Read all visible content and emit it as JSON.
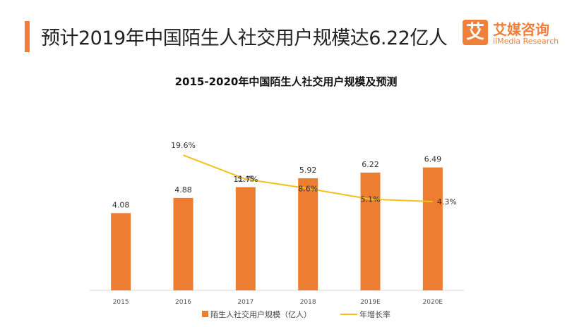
{
  "header": {
    "headline": "预计2019年中国陌生人社交用户规模达6.22亿人",
    "accent_color": "#ef7f3a"
  },
  "logo": {
    "mark": "艾",
    "cn": "艾媒咨询",
    "en": "iiMedia Research",
    "color": "#ef7f3a"
  },
  "chart_data": {
    "type": "bar",
    "title": "2015-2020年中国陌生人社交用户规模及预测",
    "categories": [
      "2015",
      "2016",
      "2017",
      "2018",
      "2019E",
      "2020E"
    ],
    "series": [
      {
        "name": "陌生人社交用户规模（亿人）",
        "type": "bar",
        "color": "#ed7d31",
        "values": [
          4.08,
          4.88,
          5.45,
          5.92,
          6.22,
          6.49
        ],
        "labels": [
          "4.08",
          "4.88",
          "5.45",
          "5.92",
          "6.22",
          "6.49"
        ]
      },
      {
        "name": "年增长率",
        "type": "line",
        "color": "#f2c11b",
        "values": [
          null,
          19.6,
          11.7,
          8.6,
          5.1,
          4.3
        ],
        "labels": [
          "",
          "19.6%",
          "11.7%",
          "8.6%",
          "5.1%",
          "4.3%"
        ]
      }
    ],
    "ylim": [
      0,
      8
    ],
    "y2lim": [
      -25,
      25
    ],
    "grid": false,
    "legend": "bottom"
  }
}
